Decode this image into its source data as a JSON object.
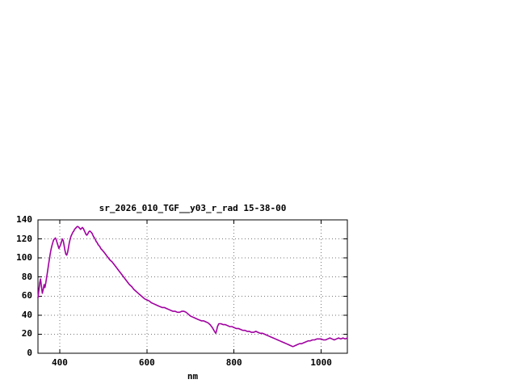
{
  "page": {
    "background": "#ffffff"
  },
  "chart_data": {
    "type": "line",
    "title": "sr_2026_010_TGF__y03_r_rad 15-38-00",
    "xlabel": "nm",
    "ylabel": "",
    "xlim": [
      350,
      1060
    ],
    "ylim": [
      0,
      140
    ],
    "xticks": [
      400,
      600,
      800,
      1000
    ],
    "yticks": [
      0,
      20,
      40,
      60,
      80,
      100,
      120,
      140
    ],
    "grid": true,
    "legend": "none",
    "line_color": "#a000a0",
    "border_color": "#000000",
    "grid_color": "#777777",
    "series": [
      {
        "points": [
          [
            350,
            58
          ],
          [
            352,
            66
          ],
          [
            354,
            74
          ],
          [
            356,
            78
          ],
          [
            358,
            70
          ],
          [
            360,
            63
          ],
          [
            362,
            67
          ],
          [
            364,
            72
          ],
          [
            366,
            69
          ],
          [
            368,
            74
          ],
          [
            370,
            80
          ],
          [
            372,
            86
          ],
          [
            374,
            92
          ],
          [
            376,
            98
          ],
          [
            378,
            104
          ],
          [
            380,
            109
          ],
          [
            382,
            113
          ],
          [
            384,
            116
          ],
          [
            386,
            119
          ],
          [
            388,
            120
          ],
          [
            390,
            121
          ],
          [
            392,
            119
          ],
          [
            394,
            116
          ],
          [
            396,
            113
          ],
          [
            398,
            110
          ],
          [
            400,
            112
          ],
          [
            402,
            114
          ],
          [
            404,
            117
          ],
          [
            406,
            120
          ],
          [
            408,
            118
          ],
          [
            410,
            113
          ],
          [
            412,
            108
          ],
          [
            414,
            104
          ],
          [
            416,
            103
          ],
          [
            418,
            106
          ],
          [
            420,
            111
          ],
          [
            422,
            116
          ],
          [
            424,
            120
          ],
          [
            426,
            123
          ],
          [
            428,
            125
          ],
          [
            430,
            127
          ],
          [
            432,
            128
          ],
          [
            434,
            130
          ],
          [
            436,
            131
          ],
          [
            438,
            132
          ],
          [
            440,
            133
          ],
          [
            442,
            133
          ],
          [
            444,
            132
          ],
          [
            446,
            131
          ],
          [
            448,
            130
          ],
          [
            450,
            131
          ],
          [
            452,
            132
          ],
          [
            454,
            131
          ],
          [
            456,
            129
          ],
          [
            458,
            127
          ],
          [
            460,
            125
          ],
          [
            462,
            124
          ],
          [
            464,
            125
          ],
          [
            466,
            127
          ],
          [
            468,
            128
          ],
          [
            470,
            128
          ],
          [
            472,
            127
          ],
          [
            474,
            126
          ],
          [
            476,
            124
          ],
          [
            478,
            122
          ],
          [
            480,
            121
          ],
          [
            482,
            119
          ],
          [
            484,
            117
          ],
          [
            486,
            116
          ],
          [
            488,
            114
          ],
          [
            490,
            113
          ],
          [
            492,
            112
          ],
          [
            494,
            110
          ],
          [
            496,
            109
          ],
          [
            498,
            108
          ],
          [
            500,
            107
          ],
          [
            505,
            104
          ],
          [
            510,
            101
          ],
          [
            515,
            98
          ],
          [
            520,
            96
          ],
          [
            525,
            93
          ],
          [
            530,
            90
          ],
          [
            535,
            87
          ],
          [
            540,
            84
          ],
          [
            545,
            81
          ],
          [
            550,
            78
          ],
          [
            555,
            75
          ],
          [
            560,
            72
          ],
          [
            565,
            70
          ],
          [
            570,
            67
          ],
          [
            575,
            65
          ],
          [
            580,
            63
          ],
          [
            585,
            61
          ],
          [
            590,
            59
          ],
          [
            595,
            57
          ],
          [
            600,
            56
          ],
          [
            605,
            55
          ],
          [
            610,
            53
          ],
          [
            615,
            52
          ],
          [
            620,
            51
          ],
          [
            625,
            50
          ],
          [
            630,
            49
          ],
          [
            635,
            48
          ],
          [
            640,
            48
          ],
          [
            645,
            47
          ],
          [
            650,
            46
          ],
          [
            655,
            45
          ],
          [
            660,
            44
          ],
          [
            665,
            44
          ],
          [
            670,
            43
          ],
          [
            675,
            43
          ],
          [
            680,
            44
          ],
          [
            685,
            44
          ],
          [
            690,
            43
          ],
          [
            695,
            41
          ],
          [
            700,
            39
          ],
          [
            705,
            38
          ],
          [
            710,
            37
          ],
          [
            715,
            36
          ],
          [
            720,
            35
          ],
          [
            725,
            34
          ],
          [
            730,
            34
          ],
          [
            735,
            33
          ],
          [
            740,
            32
          ],
          [
            745,
            30
          ],
          [
            750,
            27
          ],
          [
            755,
            23
          ],
          [
            758,
            21
          ],
          [
            760,
            24
          ],
          [
            762,
            28
          ],
          [
            765,
            31
          ],
          [
            770,
            31
          ],
          [
            775,
            30
          ],
          [
            780,
            30
          ],
          [
            785,
            29
          ],
          [
            790,
            28
          ],
          [
            795,
            28
          ],
          [
            800,
            27
          ],
          [
            805,
            26
          ],
          [
            810,
            26
          ],
          [
            815,
            25
          ],
          [
            820,
            24
          ],
          [
            825,
            24
          ],
          [
            830,
            23
          ],
          [
            835,
            23
          ],
          [
            840,
            22
          ],
          [
            845,
            22
          ],
          [
            850,
            23
          ],
          [
            855,
            22
          ],
          [
            860,
            21
          ],
          [
            865,
            21
          ],
          [
            870,
            20
          ],
          [
            875,
            19
          ],
          [
            880,
            18
          ],
          [
            885,
            17
          ],
          [
            890,
            16
          ],
          [
            895,
            15
          ],
          [
            900,
            14
          ],
          [
            905,
            13
          ],
          [
            910,
            12
          ],
          [
            915,
            11
          ],
          [
            920,
            10
          ],
          [
            925,
            9
          ],
          [
            930,
            8
          ],
          [
            935,
            7
          ],
          [
            940,
            8
          ],
          [
            945,
            9
          ],
          [
            950,
            10
          ],
          [
            955,
            10
          ],
          [
            960,
            11
          ],
          [
            965,
            12
          ],
          [
            970,
            13
          ],
          [
            975,
            13
          ],
          [
            980,
            14
          ],
          [
            985,
            14
          ],
          [
            990,
            15
          ],
          [
            995,
            15
          ],
          [
            1000,
            15
          ],
          [
            1005,
            14
          ],
          [
            1010,
            14
          ],
          [
            1015,
            15
          ],
          [
            1020,
            16
          ],
          [
            1025,
            15
          ],
          [
            1030,
            14
          ],
          [
            1035,
            15
          ],
          [
            1040,
            16
          ],
          [
            1045,
            15
          ],
          [
            1050,
            16
          ],
          [
            1055,
            15
          ],
          [
            1060,
            16
          ]
        ]
      }
    ]
  }
}
